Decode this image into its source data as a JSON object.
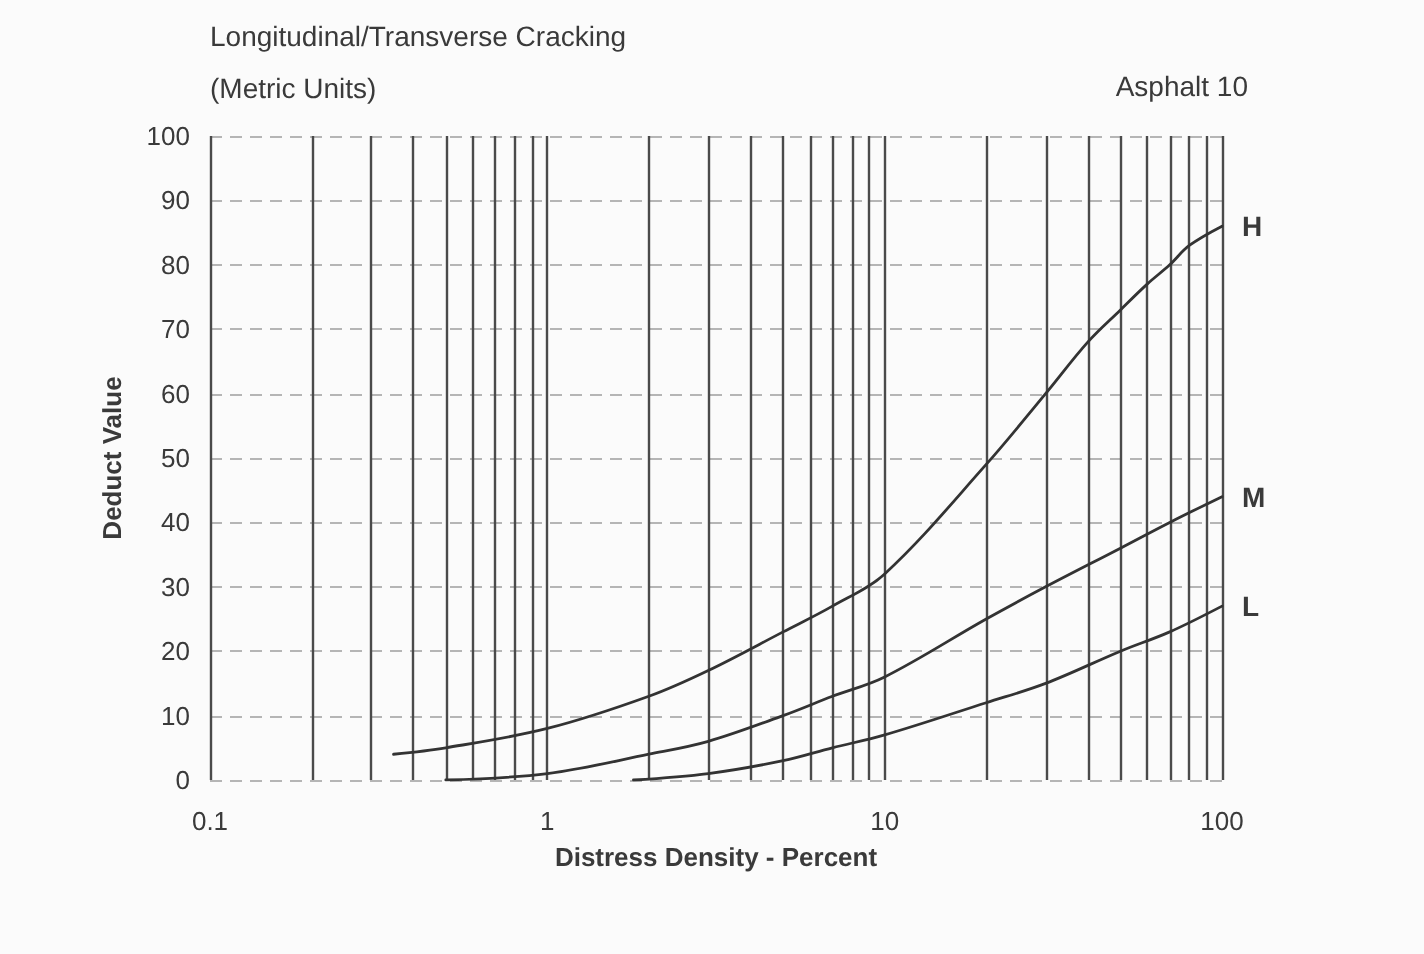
{
  "chart_data": {
    "type": "line",
    "title": "Longitudinal/Transverse Cracking",
    "subtitle": "(Metric Units)",
    "annotations": [
      "Asphalt 10"
    ],
    "xlabel": "Distress Density - Percent",
    "ylabel": "Deduct Value",
    "log": "x",
    "xlim": [
      0.1,
      100
    ],
    "ylim": [
      0,
      100
    ],
    "xticks": [
      0.1,
      {
        "value": 0.2,
        "label": null
      },
      {
        "value": 0.3,
        "label": null
      },
      {
        "value": 0.4,
        "label": null
      },
      {
        "value": 0.5,
        "label": null
      },
      {
        "value": 0.6,
        "label": null
      },
      {
        "value": 0.7,
        "label": null
      },
      {
        "value": 0.8,
        "label": null
      },
      {
        "value": 0.9,
        "label": null
      },
      1,
      {
        "value": 2,
        "label": null
      },
      {
        "value": 3,
        "label": null
      },
      {
        "value": 4,
        "label": null
      },
      {
        "value": 5,
        "label": null
      },
      {
        "value": 6,
        "label": null
      },
      {
        "value": 7,
        "label": null
      },
      {
        "value": 8,
        "label": null
      },
      {
        "value": 9,
        "label": null
      },
      10,
      {
        "value": 20,
        "label": null
      },
      {
        "value": 30,
        "label": null
      },
      {
        "value": 40,
        "label": null
      },
      {
        "value": 50,
        "label": null
      },
      {
        "value": 60,
        "label": null
      },
      {
        "value": 70,
        "label": null
      },
      {
        "value": 80,
        "label": null
      },
      {
        "value": 90,
        "label": null
      },
      100
    ],
    "yticks": [
      0,
      10,
      20,
      30,
      40,
      50,
      60,
      70,
      80,
      90,
      100
    ],
    "grid": true,
    "marker": "none",
    "line_style": "solid",
    "series": [
      {
        "name": "H",
        "color": "#333333",
        "x": [
          0.35,
          0.5,
          1,
          2,
          3,
          5,
          7,
          10,
          20,
          30,
          40,
          50,
          60,
          70,
          80,
          100
        ],
        "values": [
          4,
          5,
          8,
          13,
          17,
          23,
          27,
          32,
          49,
          60,
          68,
          73,
          77,
          80,
          83,
          86
        ]
      },
      {
        "name": "M",
        "color": "#333333",
        "x": [
          0.5,
          1,
          2,
          3,
          5,
          7,
          10,
          20,
          30,
          50,
          70,
          100
        ],
        "values": [
          0,
          1,
          4,
          6,
          10,
          13,
          16,
          25,
          30,
          36,
          40,
          44
        ]
      },
      {
        "name": "L",
        "color": "#333333",
        "x": [
          1.8,
          3,
          5,
          7,
          10,
          20,
          30,
          50,
          70,
          100
        ],
        "values": [
          0,
          1,
          3,
          5,
          7,
          12,
          15,
          20,
          23,
          27
        ]
      }
    ]
  }
}
